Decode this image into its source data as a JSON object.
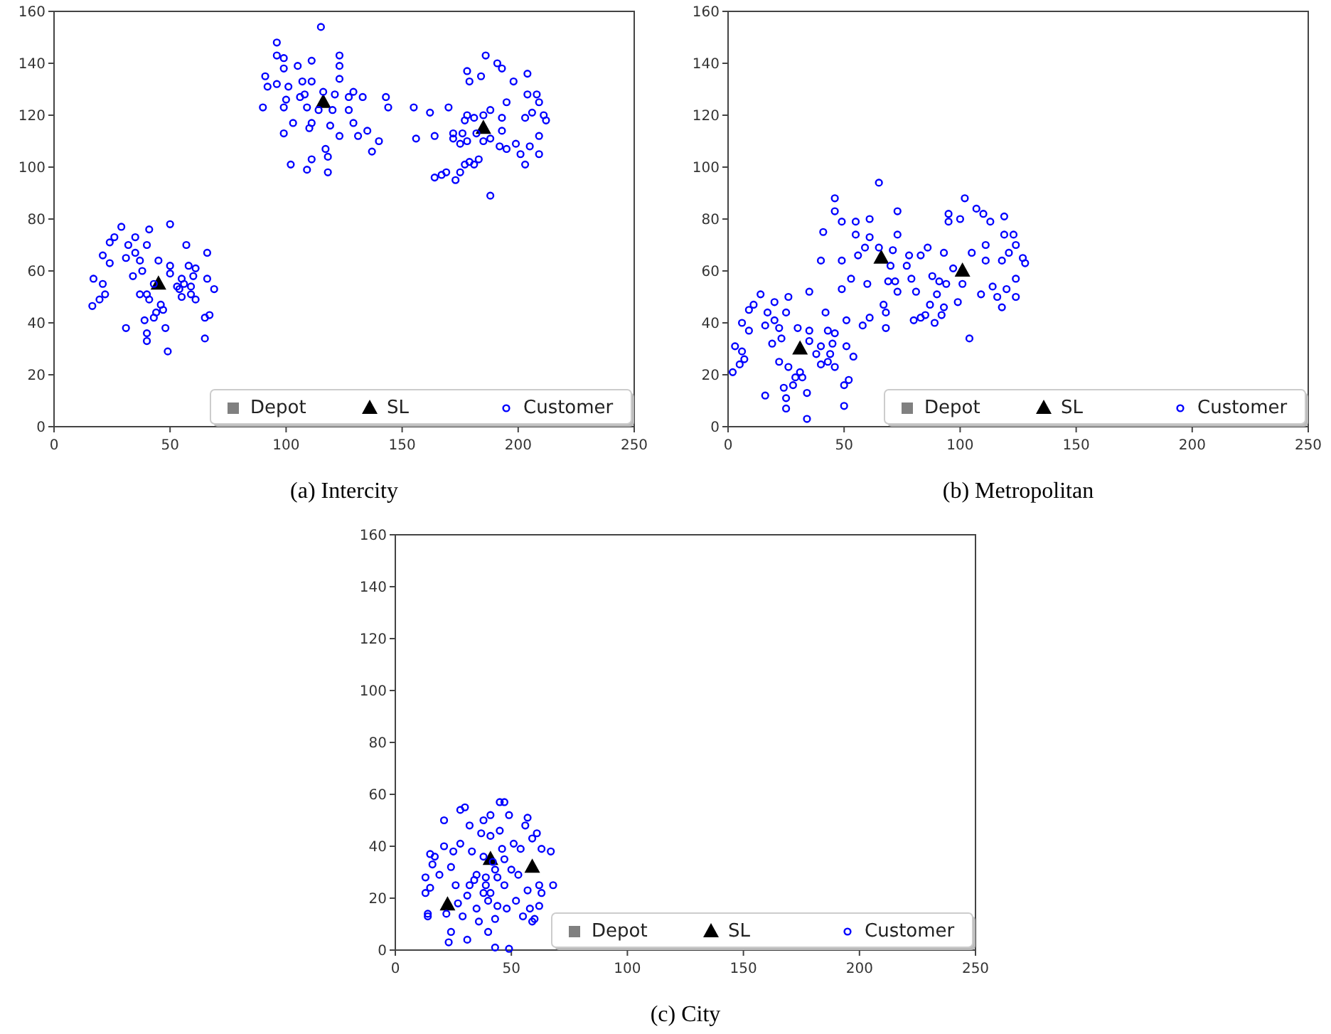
{
  "chart_data": [
    {
      "type": "scatter",
      "title": "(a) Intercity",
      "xlim": [
        0,
        250
      ],
      "ylim": [
        0,
        160
      ],
      "xticks": [
        0,
        50,
        100,
        150,
        200,
        250
      ],
      "yticks": [
        0,
        20,
        40,
        60,
        80,
        100,
        120,
        140,
        160
      ],
      "grid": false,
      "legend": "bottom right",
      "series": [
        {
          "name": "Depot",
          "color": "#808080",
          "marker": "square"
        },
        {
          "name": "SL",
          "color": "#000000",
          "marker": "triangle",
          "x": [
            45,
            116,
            185
          ],
          "values": [
            55,
            125,
            115
          ]
        },
        {
          "name": "Customer",
          "color": "#0000ff",
          "marker": "circle",
          "x": [
            17,
            16.5,
            19.6,
            21,
            22,
            21,
            24,
            24,
            26,
            29,
            32,
            31,
            34,
            35,
            35,
            37,
            37,
            38,
            39,
            41,
            40,
            41,
            40,
            40,
            40,
            43,
            44,
            45,
            46,
            47,
            48,
            49,
            50,
            50,
            50,
            53,
            54,
            55,
            55,
            56,
            57,
            58,
            59,
            59,
            60,
            61,
            61,
            66,
            66,
            65,
            67,
            69,
            65,
            31,
            43,
            90,
            91,
            92,
            96,
            96,
            96,
            99,
            99,
            99,
            99,
            100,
            101,
            102,
            103,
            105,
            106,
            107,
            108,
            109,
            110,
            111,
            111,
            111,
            111,
            109,
            115,
            114,
            116,
            117,
            118,
            118,
            119,
            120,
            121,
            123,
            123,
            123,
            123,
            127,
            127,
            129,
            129,
            131,
            133,
            135,
            137,
            140,
            143,
            144,
            155,
            156,
            162,
            164,
            164,
            167,
            169,
            170,
            172,
            172,
            173,
            175,
            175,
            176,
            177,
            177,
            178,
            178,
            178,
            179,
            179,
            181,
            181,
            182,
            183,
            184,
            185,
            185,
            186,
            188,
            188,
            188,
            191,
            192,
            193,
            193,
            193,
            195,
            195,
            198,
            199,
            201,
            203,
            203,
            204,
            204,
            205,
            206,
            208,
            209,
            209,
            209,
            211,
            212
          ],
          "values": [
            57,
            46.5,
            49,
            55,
            51,
            66,
            63,
            71,
            73,
            77,
            70,
            65,
            58,
            73,
            67,
            64,
            51,
            60,
            41,
            76,
            70,
            49,
            51,
            36,
            33,
            42,
            44,
            64,
            47,
            45,
            38,
            29,
            78,
            62,
            59,
            54,
            53,
            50,
            57,
            55,
            70,
            62,
            54,
            51,
            58,
            61,
            49,
            67,
            57,
            42,
            43,
            53,
            34,
            38,
            55,
            123,
            135,
            131,
            148,
            143,
            132,
            142,
            138,
            123,
            113,
            126,
            131,
            101,
            117,
            139,
            127,
            133,
            128,
            123,
            115,
            103,
            141,
            133,
            117,
            99,
            154,
            122,
            129,
            107,
            104,
            98,
            116,
            122,
            128,
            143,
            139,
            134,
            112,
            122,
            127,
            129,
            117,
            112,
            127,
            114,
            106,
            110,
            127,
            123,
            123,
            111,
            121,
            112,
            96,
            97,
            98,
            123,
            113,
            111,
            95,
            98,
            109,
            113,
            118,
            101,
            120,
            110,
            137,
            133,
            102,
            119,
            101,
            113,
            103,
            135,
            120,
            110,
            143,
            89,
            122,
            111,
            140,
            108,
            138,
            114,
            119,
            125,
            107,
            133,
            109,
            105,
            119,
            101,
            136,
            128,
            108,
            121,
            128,
            125,
            112,
            105,
            120,
            118
          ]
        }
      ]
    },
    {
      "type": "scatter",
      "title": "(b) Metropolitan",
      "xlim": [
        0,
        250
      ],
      "ylim": [
        0,
        160
      ],
      "xticks": [
        0,
        50,
        100,
        150,
        200,
        250
      ],
      "yticks": [
        0,
        20,
        40,
        60,
        80,
        100,
        120,
        140,
        160
      ],
      "grid": false,
      "legend": "bottom right",
      "series": [
        {
          "name": "Depot",
          "color": "#808080",
          "marker": "square"
        },
        {
          "name": "SL",
          "color": "#000000",
          "marker": "triangle",
          "x": [
            31,
            66,
            101
          ],
          "values": [
            30,
            65,
            60
          ]
        },
        {
          "name": "Customer",
          "color": "#0000ff",
          "marker": "circle",
          "x": [
            2,
            3,
            5,
            6,
            6,
            7,
            9,
            9,
            11,
            14,
            16,
            16,
            17,
            19,
            20,
            20,
            22,
            22,
            23,
            24,
            25,
            25,
            25,
            26,
            26,
            28,
            29,
            30,
            31,
            32,
            34,
            34,
            35,
            35,
            35,
            38,
            40,
            40,
            40,
            41,
            42,
            43,
            43,
            44,
            45,
            46,
            46,
            46,
            46,
            49,
            49,
            49,
            50,
            50,
            51,
            51,
            52,
            53,
            54,
            55,
            55,
            56,
            58,
            59,
            60,
            61,
            61,
            61,
            65,
            65,
            67,
            68,
            68,
            69,
            70,
            71,
            72,
            73,
            73,
            73,
            77,
            78,
            79,
            80,
            81,
            83,
            83,
            85,
            86,
            87,
            88,
            89,
            90,
            91,
            92,
            93,
            93,
            94,
            95,
            95,
            97,
            99,
            100,
            101,
            102,
            104,
            105,
            107,
            110,
            109,
            111,
            111,
            113,
            114,
            116,
            118,
            118,
            119,
            119,
            120,
            121,
            123,
            124,
            124,
            124,
            127,
            128
          ],
          "values": [
            21,
            31,
            24,
            29,
            40,
            26,
            37,
            45,
            47,
            51,
            12,
            39,
            44,
            32,
            48,
            41,
            25,
            38,
            34,
            15,
            7,
            11,
            44,
            50,
            23,
            16,
            19,
            38,
            21,
            19,
            13,
            3,
            37,
            33,
            52,
            28,
            31,
            24,
            64,
            75,
            44,
            37,
            25,
            28,
            32,
            23,
            36,
            83,
            88,
            53,
            79,
            64,
            16,
            8,
            31,
            41,
            18,
            57,
            27,
            74,
            79,
            66,
            39,
            69,
            55,
            42,
            73,
            80,
            94,
            69,
            47,
            44,
            38,
            56,
            62,
            68,
            56,
            83,
            74,
            52,
            62,
            66,
            57,
            41,
            52,
            42,
            66,
            43,
            69,
            47,
            58,
            40,
            51,
            56,
            43,
            67,
            46,
            55,
            82,
            79,
            61,
            48,
            80,
            55,
            88,
            34,
            67,
            84,
            82,
            51,
            70,
            64,
            79,
            54,
            50,
            46,
            64,
            81,
            74,
            53,
            67,
            74,
            70,
            50,
            57,
            65,
            63
          ]
        }
      ]
    },
    {
      "type": "scatter",
      "title": "(c) City",
      "xlim": [
        0,
        250
      ],
      "ylim": [
        0,
        160
      ],
      "xticks": [
        0,
        50,
        100,
        150,
        200,
        250
      ],
      "yticks": [
        0,
        20,
        40,
        60,
        80,
        100,
        120,
        140,
        160
      ],
      "grid": false,
      "legend": "bottom right",
      "series": [
        {
          "name": "Depot",
          "color": "#808080",
          "marker": "square"
        },
        {
          "name": "SL",
          "color": "#000000",
          "marker": "triangle",
          "x": [
            22.5,
            41,
            59
          ],
          "values": [
            17.5,
            35,
            32
          ]
        },
        {
          "name": "Customer",
          "color": "#0000ff",
          "marker": "circle",
          "x": [
            13,
            13,
            14,
            14,
            15,
            15,
            16,
            17,
            19,
            21,
            21,
            22,
            23,
            24,
            24,
            25,
            26,
            27,
            28,
            28,
            29,
            30,
            31,
            31,
            32,
            33,
            34,
            35,
            35,
            36,
            37,
            38,
            38,
            39,
            40,
            40,
            41,
            41,
            42,
            43,
            43,
            44,
            44,
            45,
            45,
            46,
            47,
            47,
            48,
            49,
            49,
            50,
            51,
            52,
            53,
            54,
            55,
            56,
            57,
            57,
            58,
            59,
            59,
            60,
            61,
            62,
            62,
            63,
            63,
            67,
            68,
            41,
            38,
            43,
            39,
            47,
            32
          ],
          "values": [
            28,
            22,
            14,
            13,
            37,
            24,
            33,
            36,
            29,
            50,
            40,
            14,
            3,
            7,
            32,
            38,
            25,
            18,
            41,
            54,
            13,
            55,
            4,
            21,
            48,
            38,
            27,
            16,
            29,
            11,
            45,
            50,
            22,
            25,
            19,
            7,
            52,
            44,
            34,
            12,
            1,
            17,
            28,
            57,
            46,
            39,
            57,
            25,
            16,
            0.5,
            52,
            31,
            41,
            19,
            29,
            39,
            13,
            48,
            23,
            51,
            16,
            43,
            11,
            12,
            45,
            25,
            17,
            39,
            22,
            38,
            25,
            22,
            36,
            31,
            28,
            35,
            25
          ]
        }
      ]
    }
  ]
}
